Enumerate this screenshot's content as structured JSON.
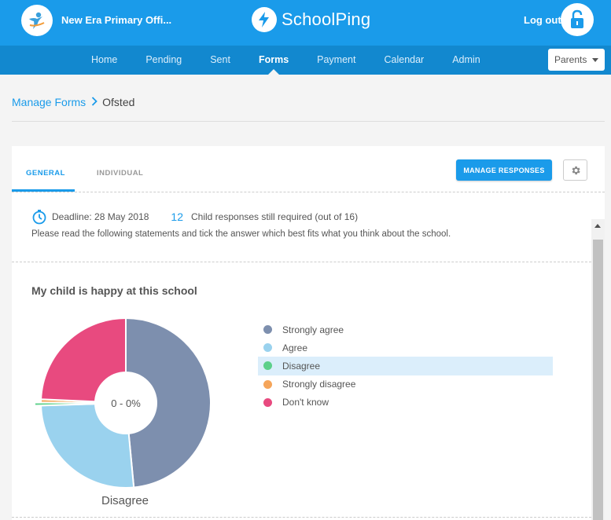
{
  "header": {
    "school_name": "New Era Primary Offi...",
    "brand": "SchoolPing",
    "logout_label": "Log out"
  },
  "nav": {
    "items": [
      {
        "label": "Home"
      },
      {
        "label": "Pending"
      },
      {
        "label": "Sent"
      },
      {
        "label": "Forms",
        "active": true
      },
      {
        "label": "Payment"
      },
      {
        "label": "Calendar"
      },
      {
        "label": "Admin"
      }
    ],
    "role_select": {
      "selected": "Parents"
    }
  },
  "breadcrumb": {
    "parent": "Manage Forms",
    "current": "Ofsted"
  },
  "tabs": {
    "general": "GENERAL",
    "individual": "INDIVIDUAL"
  },
  "actions": {
    "manage_responses": "MANAGE RESPONSES"
  },
  "form_info": {
    "deadline": "Deadline: 28 May 2018",
    "responses_required_count": "12",
    "responses_required_text": "Child responses still required (out of 16)",
    "instructions": "Please read the following statements and tick the answer which best fits what you think about the school."
  },
  "chart_data": {
    "type": "pie",
    "title": "My child is happy at this school",
    "center_label": "0 - 0%",
    "selected_label": "Disagree",
    "selected_index": 2,
    "legend_placement": "right",
    "slices": [
      {
        "label": "Strongly agree",
        "value": 48.5,
        "color": "#7d8fae"
      },
      {
        "label": "Agree",
        "value": 26,
        "color": "#9ad2ee"
      },
      {
        "label": "Disagree",
        "value": 0.6,
        "color": "#5cd08a"
      },
      {
        "label": "Strongly disagree",
        "value": 0.6,
        "color": "#f5a55a"
      },
      {
        "label": "Don't know",
        "value": 24.3,
        "color": "#e84a7f"
      }
    ]
  },
  "colors": {
    "primary": "#1a9bea",
    "nav_dark": "#1288cf",
    "selected_bg": "#dbeefb"
  }
}
